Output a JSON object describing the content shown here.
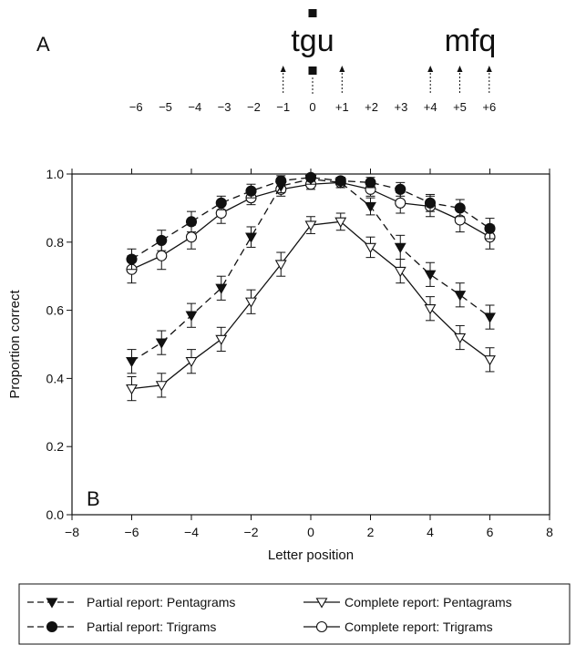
{
  "panel_a": {
    "label": "A",
    "word_left": "tgu",
    "word_right": "mfq",
    "positions": [
      "−6",
      "−5",
      "−4",
      "−3",
      "−2",
      "−1",
      "0",
      "+1",
      "+2",
      "+3",
      "+4",
      "+5",
      "+6"
    ],
    "arrow_positions": [
      -1,
      1,
      4,
      5,
      6
    ],
    "fixation_position": 0
  },
  "chart_data": {
    "type": "line",
    "panel_label": "B",
    "xlabel": "Letter position",
    "ylabel": "Proportion correct",
    "xlim": [
      -8,
      8
    ],
    "ylim": [
      0,
      1.0
    ],
    "xticks": [
      -8,
      -6,
      -4,
      -2,
      0,
      2,
      4,
      6,
      8
    ],
    "xtick_labels": [
      "−8",
      "−6",
      "−4",
      "−2",
      "0",
      "2",
      "4",
      "6",
      "8"
    ],
    "yticks": [
      0,
      0.2,
      0.4,
      0.6,
      0.8,
      1.0
    ],
    "ytick_labels": [
      "0.0",
      "0.2",
      "0.4",
      "0.6",
      "0.8",
      "1.0"
    ],
    "grid": false,
    "legend_position": "bottom",
    "x": [
      -6,
      -5,
      -4,
      -3,
      -2,
      -1,
      0,
      1,
      2,
      3,
      4,
      5,
      6
    ],
    "series": [
      {
        "name": "Partial report: Pentagrams",
        "marker": "triangle-down-filled",
        "line": "dashed",
        "y": [
          0.45,
          0.505,
          0.585,
          0.665,
          0.815,
          0.965,
          0.985,
          0.975,
          0.905,
          0.785,
          0.705,
          0.645,
          0.58
        ],
        "err": [
          0.035,
          0.035,
          0.035,
          0.035,
          0.03,
          0.02,
          0.015,
          0.015,
          0.025,
          0.035,
          0.035,
          0.035,
          0.035
        ]
      },
      {
        "name": "Complete report: Pentagrams",
        "marker": "triangle-down-open",
        "line": "solid",
        "y": [
          0.37,
          0.38,
          0.45,
          0.515,
          0.625,
          0.735,
          0.85,
          0.86,
          0.785,
          0.715,
          0.605,
          0.52,
          0.455
        ],
        "err": [
          0.035,
          0.035,
          0.035,
          0.035,
          0.035,
          0.035,
          0.025,
          0.025,
          0.03,
          0.035,
          0.035,
          0.035,
          0.035
        ]
      },
      {
        "name": "Partial report: Trigrams",
        "marker": "circle-filled",
        "line": "dashed",
        "y": [
          0.75,
          0.805,
          0.86,
          0.915,
          0.95,
          0.98,
          0.99,
          0.98,
          0.975,
          0.955,
          0.915,
          0.9,
          0.84
        ],
        "err": [
          0.03,
          0.03,
          0.03,
          0.02,
          0.02,
          0.015,
          0.01,
          0.01,
          0.015,
          0.02,
          0.025,
          0.025,
          0.03
        ]
      },
      {
        "name": "Complete report: Trigrams",
        "marker": "circle-open",
        "line": "solid",
        "y": [
          0.72,
          0.76,
          0.815,
          0.885,
          0.93,
          0.955,
          0.97,
          0.975,
          0.955,
          0.915,
          0.905,
          0.865,
          0.815
        ],
        "err": [
          0.04,
          0.04,
          0.035,
          0.03,
          0.02,
          0.02,
          0.015,
          0.015,
          0.02,
          0.03,
          0.03,
          0.035,
          0.035
        ]
      }
    ],
    "legend": {
      "rows": [
        [
          "Partial report: Pentagrams",
          "Complete report: Pentagrams"
        ],
        [
          "Partial report: Trigrams",
          "Complete report: Trigrams"
        ]
      ]
    }
  }
}
